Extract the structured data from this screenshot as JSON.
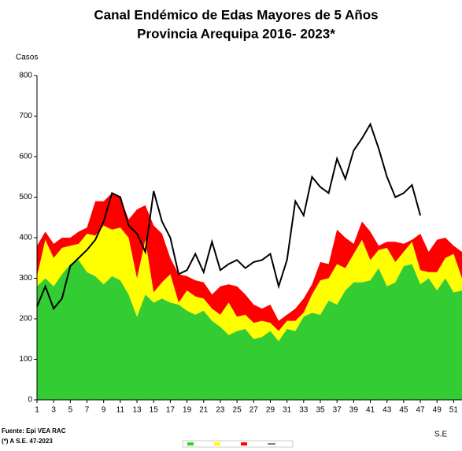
{
  "chart_data": {
    "type": "stacked-area-line",
    "title": "Canal Endémico de Edas Mayores de 5 Años",
    "subtitle": "Provincia Arequipa  2016- 2023*",
    "ylabel": "Casos",
    "xlabel": "S.E",
    "notes": [
      "Fuente: Epi VEA RAC",
      "(*) A S.E. 47-2023"
    ],
    "x": [
      1,
      2,
      3,
      4,
      5,
      6,
      7,
      8,
      9,
      10,
      11,
      12,
      13,
      14,
      15,
      16,
      17,
      18,
      19,
      20,
      21,
      22,
      23,
      24,
      25,
      26,
      27,
      28,
      29,
      30,
      31,
      32,
      33,
      34,
      35,
      36,
      37,
      38,
      39,
      40,
      41,
      42,
      43,
      44,
      45,
      46,
      47,
      48,
      49,
      50,
      51,
      52
    ],
    "xlim": [
      1,
      52
    ],
    "xticks": [
      1,
      3,
      5,
      7,
      9,
      11,
      13,
      15,
      17,
      19,
      21,
      23,
      25,
      27,
      29,
      31,
      33,
      35,
      37,
      39,
      41,
      43,
      45,
      47,
      49,
      51
    ],
    "ylim": [
      0,
      800
    ],
    "yticks": [
      0,
      100,
      200,
      300,
      400,
      500,
      600,
      700,
      800
    ],
    "series": [
      {
        "color": "#33cc33",
        "stack": true,
        "values": [
          280,
          300,
          280,
          310,
          335,
          345,
          315,
          305,
          285,
          305,
          295,
          260,
          205,
          260,
          240,
          250,
          240,
          235,
          220,
          210,
          220,
          195,
          180,
          160,
          170,
          175,
          150,
          155,
          170,
          145,
          175,
          170,
          205,
          215,
          210,
          245,
          235,
          270,
          290,
          290,
          295,
          325,
          280,
          290,
          330,
          335,
          285,
          300,
          270,
          300,
          265,
          270
        ]
      },
      {
        "color": "#ffff00",
        "stack": true,
        "values": [
          25,
          95,
          70,
          65,
          45,
          40,
          95,
          100,
          145,
          115,
          130,
          140,
          95,
          135,
          25,
          40,
          70,
          5,
          50,
          45,
          30,
          30,
          30,
          80,
          35,
          35,
          40,
          40,
          20,
          25,
          20,
          25,
          10,
          45,
          85,
          55,
          100,
          55,
          70,
          105,
          50,
          45,
          95,
          50,
          35,
          55,
          35,
          15,
          45,
          50,
          95,
          30
        ]
      },
      {
        "color": "#ff0000",
        "stack": true,
        "values": [
          75,
          20,
          35,
          25,
          20,
          30,
          15,
          85,
          60,
          90,
          75,
          45,
          170,
          85,
          165,
          120,
          40,
          70,
          35,
          40,
          40,
          35,
          70,
          45,
          75,
          50,
          45,
          30,
          45,
          25,
          15,
          30,
          35,
          25,
          45,
          35,
          85,
          75,
          25,
          45,
          70,
          10,
          15,
          50,
          20,
          5,
          90,
          50,
          80,
          50,
          20,
          65
        ]
      },
      {
        "color": "#000000",
        "stack": false,
        "values": [
          230,
          280,
          225,
          250,
          330,
          350,
          370,
          395,
          440,
          510,
          500,
          430,
          410,
          365,
          515,
          440,
          400,
          310,
          320,
          360,
          315,
          390,
          320,
          335,
          345,
          325,
          340,
          345,
          360,
          280,
          345,
          490,
          455,
          550,
          525,
          510,
          595,
          545,
          615,
          645,
          680,
          620,
          550,
          500,
          510,
          530,
          455,
          null,
          null,
          null,
          null,
          null
        ]
      }
    ]
  }
}
